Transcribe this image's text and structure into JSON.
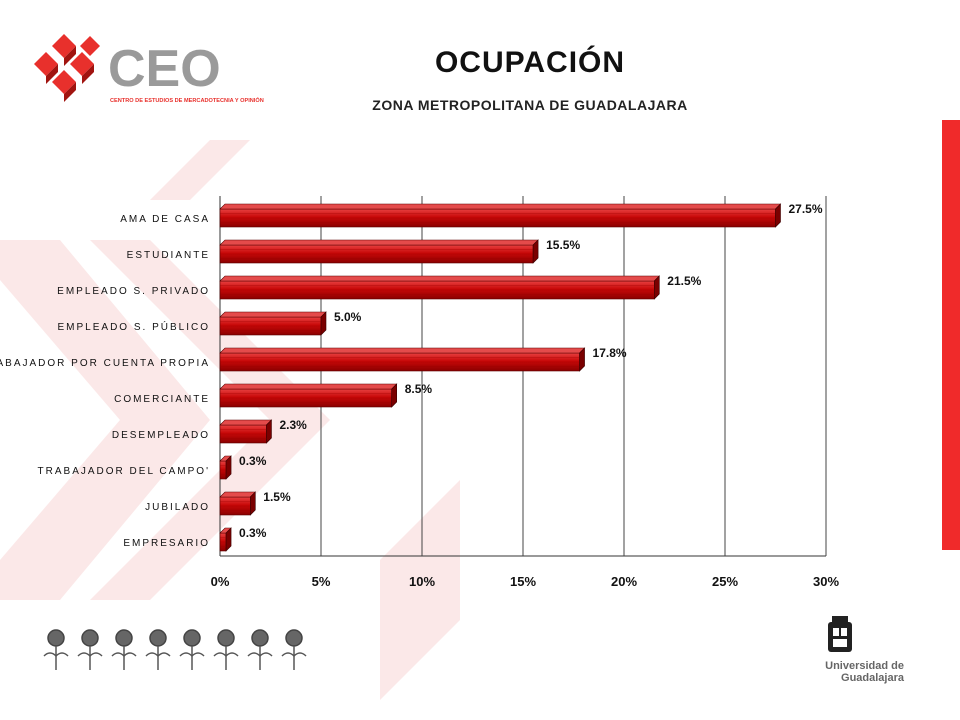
{
  "header": {
    "title": "OCUPACIÓN",
    "subtitle": "ZONA METROPOLITANA DE GUADALAJARA"
  },
  "logo": {
    "name": "CEO",
    "tagline": "CENTRO DE ESTUDIOS DE MERCADOTECNIA Y OPINIÓN",
    "colors": {
      "mark": "#e8302c",
      "text": "#9a9a9a"
    }
  },
  "footer": {
    "university": "Universidad de Guadalajara"
  },
  "colors": {
    "bar": "#c80808",
    "bar_top": "#e04040",
    "bar_side": "#7a0000",
    "accent": "#f02a2a"
  },
  "chart_data": {
    "type": "bar",
    "orientation": "horizontal",
    "categories": [
      "AMA DE CASA",
      "ESTUDIANTE",
      "EMPLEADO S. PRIVADO",
      "EMPLEADO S. PÚBLICO",
      "TRABAJADOR POR CUENTA PROPIA",
      "COMERCIANTE",
      "DESEMPLEADO",
      "TRABAJADOR DEL CAMPO'",
      "JUBILADO",
      "EMPRESARIO"
    ],
    "values": [
      27.5,
      15.5,
      21.5,
      5.0,
      17.8,
      8.5,
      2.3,
      0.3,
      1.5,
      0.3
    ],
    "value_labels": [
      "27.5%",
      "15.5%",
      "21.5%",
      "5.0%",
      "17.8%",
      "8.5%",
      "2.3%",
      "0.3%",
      "1.5%",
      "0.3%"
    ],
    "xticks": [
      "0%",
      "5%",
      "10%",
      "15%",
      "20%",
      "25%",
      "30%"
    ],
    "xlim": [
      0,
      30
    ],
    "grid": "vertical"
  }
}
